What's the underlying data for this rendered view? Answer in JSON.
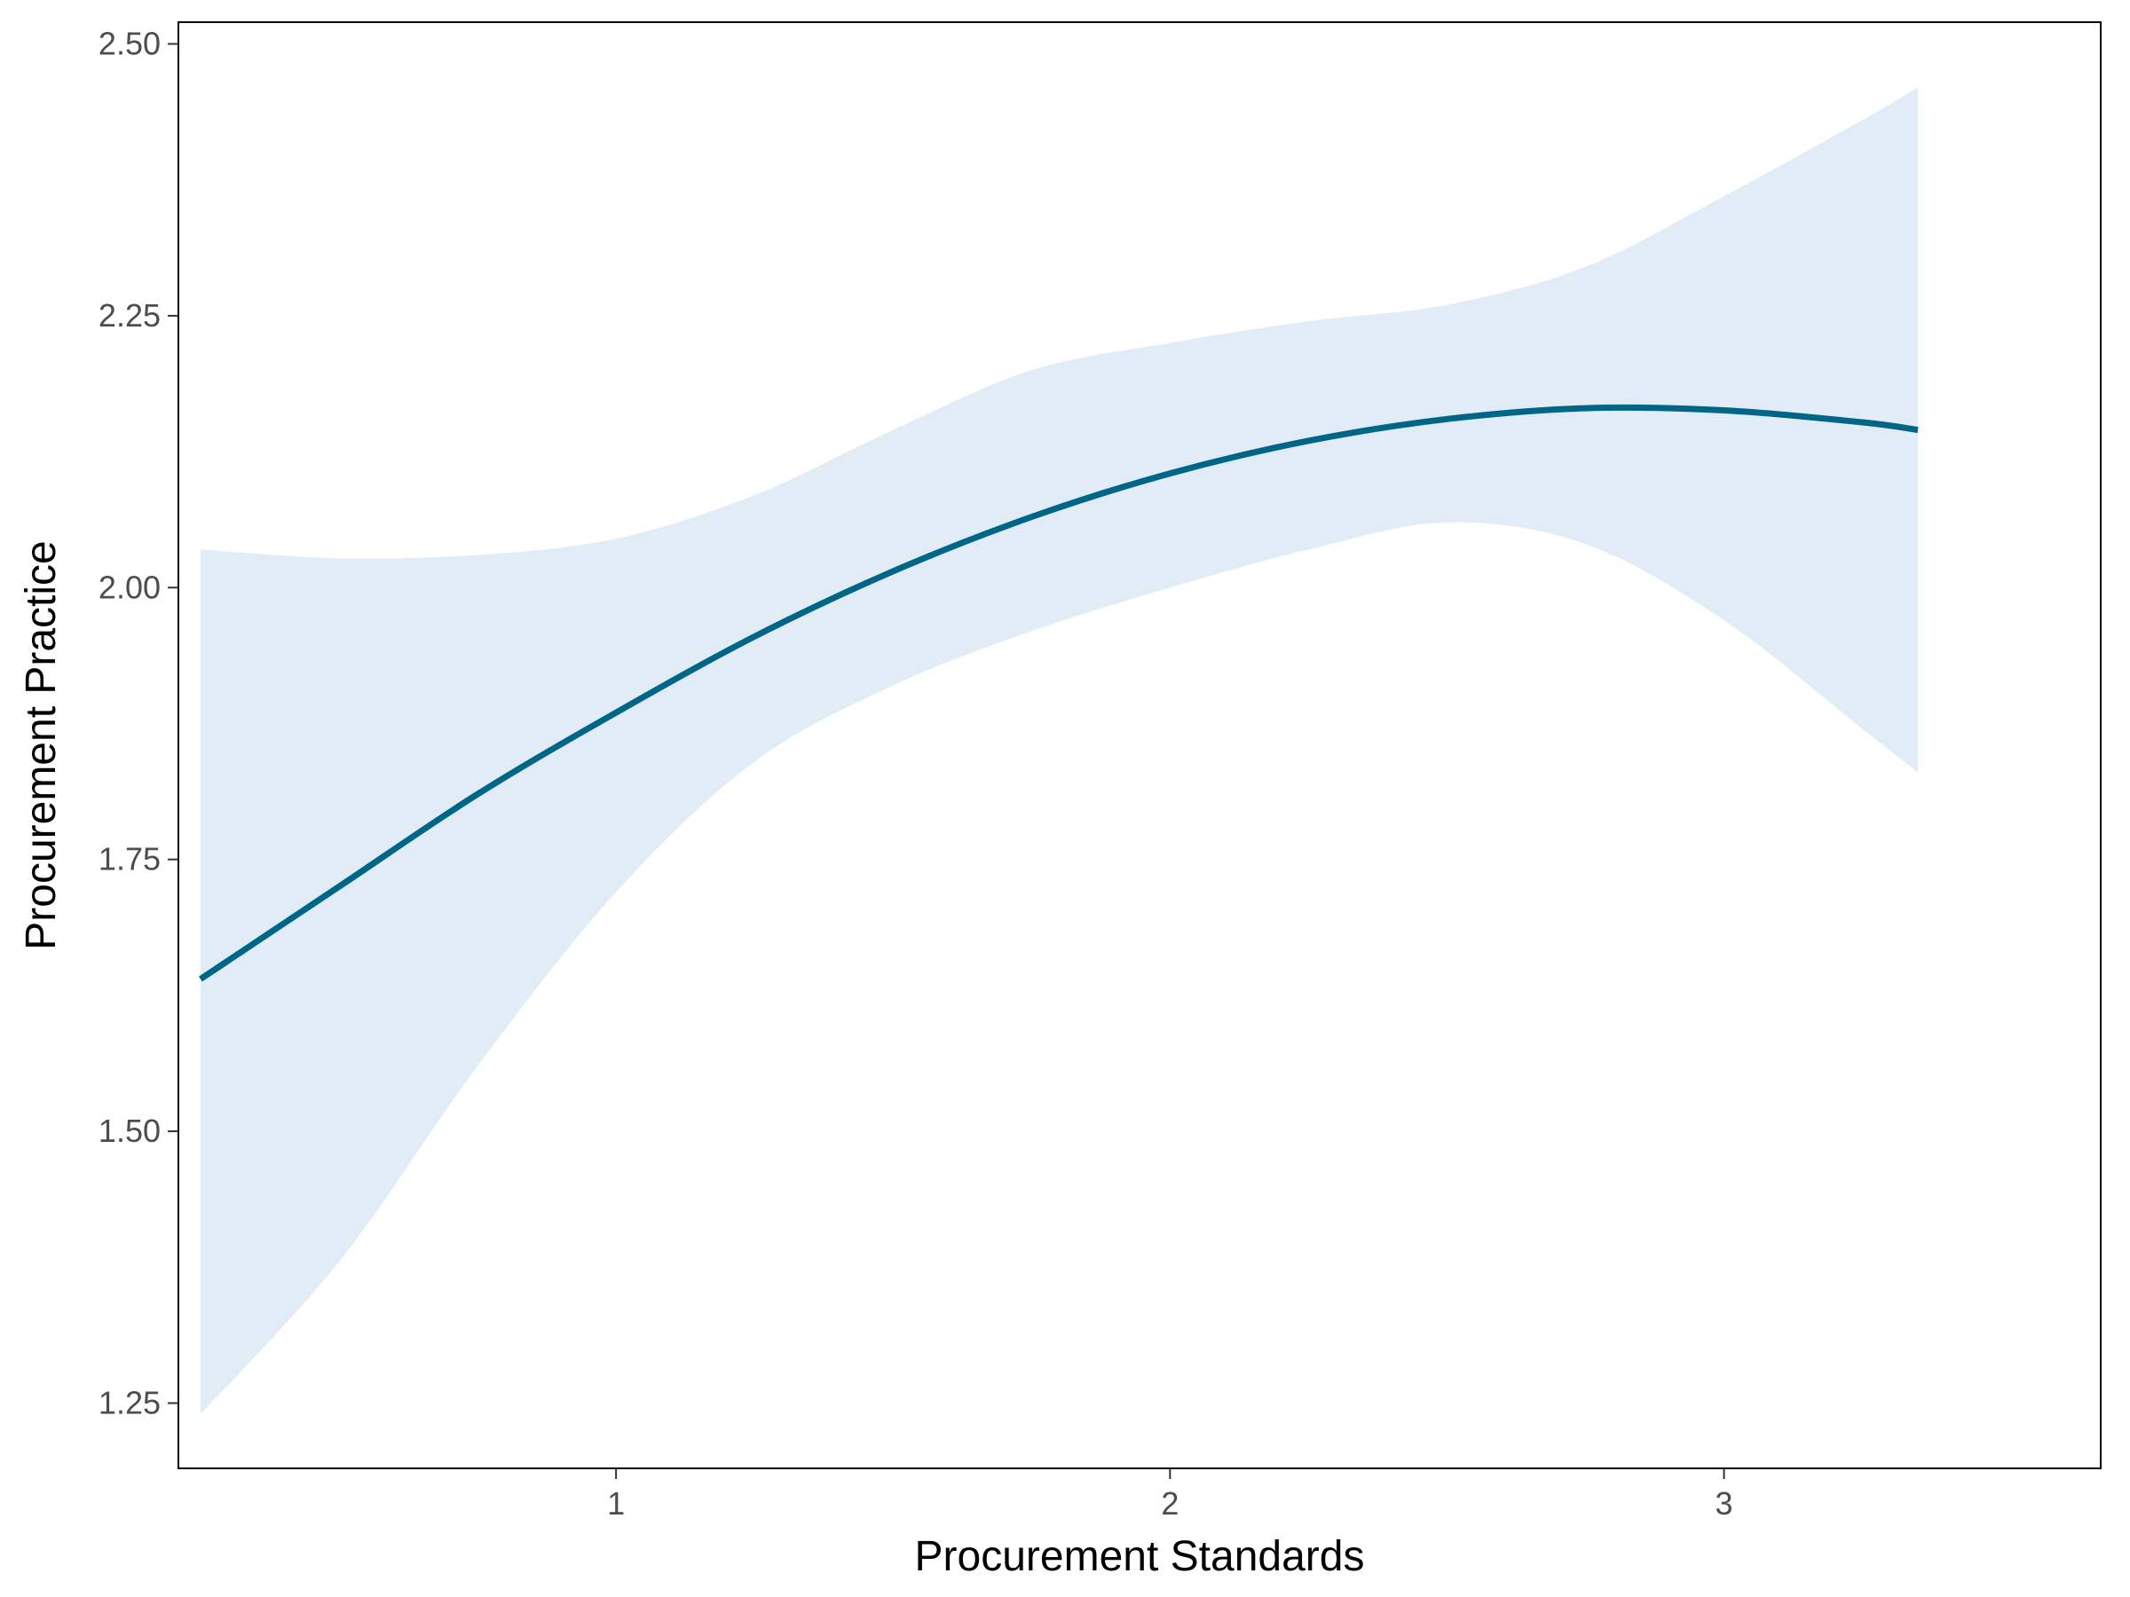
{
  "chart_data": {
    "type": "line",
    "title": "",
    "xlabel": "Procurement Standards",
    "ylabel": "Procurement Practice",
    "xlim": [
      0.21,
      3.68
    ],
    "ylim": [
      1.19,
      2.52
    ],
    "x_ticks": [
      1,
      2,
      3
    ],
    "x_tick_labels": [
      "1",
      "2",
      "3"
    ],
    "y_ticks": [
      1.25,
      1.5,
      1.75,
      2.0,
      2.25,
      2.5
    ],
    "y_tick_labels": [
      "1.25",
      "1.50",
      "1.75",
      "2.00",
      "2.25",
      "2.50"
    ],
    "grid": false,
    "legend": "none",
    "colors": {
      "line": "#006687",
      "ribbon": "#e2ecf6",
      "frame": "#000000"
    },
    "series": [
      {
        "x": [
          0.25,
          0.5,
          0.75,
          1.0,
          1.25,
          1.5,
          1.75,
          2.0,
          2.25,
          2.5,
          2.75,
          3.0,
          3.25,
          3.35
        ],
        "y": [
          1.64,
          1.725,
          1.81,
          1.885,
          1.955,
          2.015,
          2.065,
          2.105,
          2.135,
          2.155,
          2.165,
          2.163,
          2.152,
          2.145
        ],
        "ymin": [
          1.24,
          1.38,
          1.56,
          1.72,
          1.84,
          1.91,
          1.96,
          2.0,
          2.035,
          2.06,
          2.04,
          1.97,
          1.87,
          1.83
        ],
        "ymax": [
          2.035,
          2.027,
          2.03,
          2.045,
          2.085,
          2.145,
          2.2,
          2.225,
          2.245,
          2.26,
          2.295,
          2.36,
          2.43,
          2.46
        ]
      }
    ]
  }
}
